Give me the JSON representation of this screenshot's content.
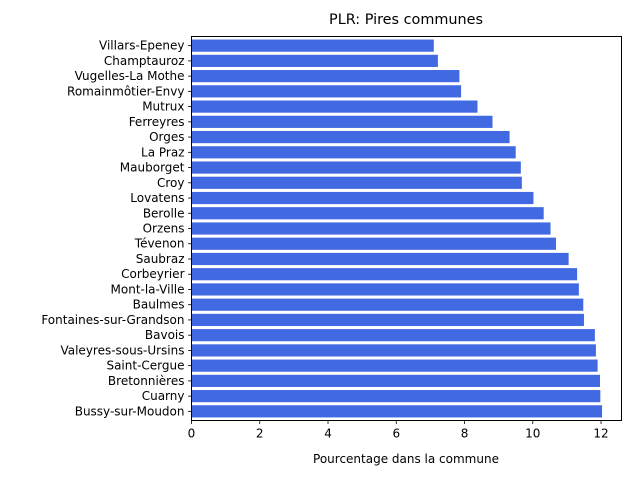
{
  "chart_data": {
    "type": "bar",
    "orientation": "horizontal",
    "title": "PLR: Pires communes",
    "xlabel": "Pourcentage dans la commune",
    "ylabel": "",
    "xlim": [
      0,
      12.6
    ],
    "xticks": [
      0,
      2,
      4,
      6,
      8,
      10,
      12
    ],
    "grid": false,
    "bar_color": "#4169e1",
    "categories": [
      "Villars-Epeney",
      "Champtauroz",
      "Vugelles-La Mothe",
      "Romainmôtier-Envy",
      "Mutrux",
      "Ferreyres",
      "Orges",
      "La Praz",
      "Mauborget",
      "Croy",
      "Lovatens",
      "Berolle",
      "Orzens",
      "Tévenon",
      "Saubraz",
      "Corbeyrier",
      "Mont-la-Ville",
      "Baulmes",
      "Fontaines-sur-Grandson",
      "Bavois",
      "Valeyres-sous-Ursins",
      "Saint-Cergue",
      "Bretonnières",
      "Cuarny",
      "Bussy-sur-Moudon"
    ],
    "values": [
      7.1,
      7.22,
      7.85,
      7.9,
      8.38,
      8.82,
      9.32,
      9.5,
      9.65,
      9.68,
      10.02,
      10.32,
      10.52,
      10.68,
      11.05,
      11.3,
      11.35,
      11.48,
      11.5,
      11.82,
      11.85,
      11.9,
      11.97,
      11.98,
      12.03
    ]
  }
}
